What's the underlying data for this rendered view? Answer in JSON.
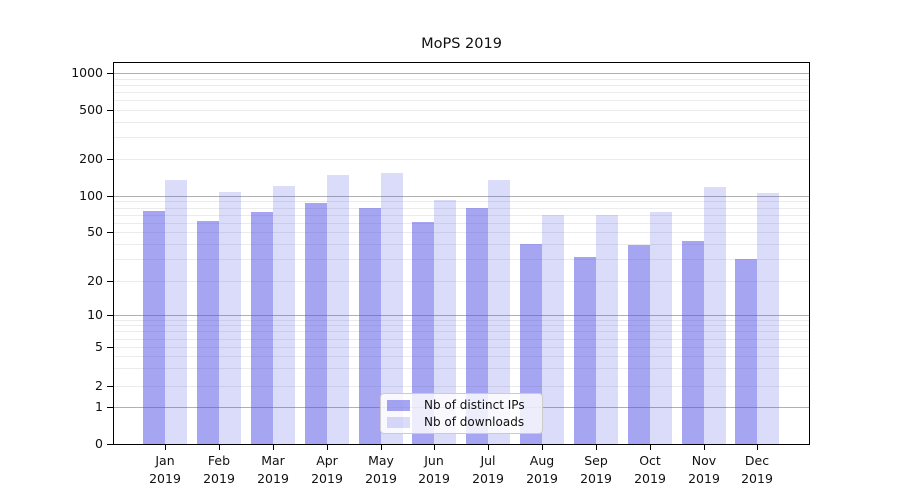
{
  "title": "MoPS 2019",
  "legend": {
    "items": [
      {
        "label": "Nb of distinct IPs",
        "color": "rgba(75,75,228,0.5)"
      },
      {
        "label": "Nb of downloads",
        "color": "rgba(75,75,228,0.2)"
      }
    ]
  },
  "y_axis": {
    "tick_values": [
      0,
      1,
      2,
      5,
      10,
      20,
      50,
      100,
      200,
      500,
      1000
    ],
    "tick_labels": [
      "0",
      "1",
      "2",
      "5",
      "10",
      "20",
      "50",
      "100",
      "200",
      "500",
      "1000"
    ]
  },
  "x_axis": {
    "tick_labels": [
      "Jan 2019",
      "Feb 2019",
      "Mar 2019",
      "Apr 2019",
      "May 2019",
      "Jun 2019",
      "Jul 2019",
      "Aug 2019",
      "Sep 2019",
      "Oct 2019",
      "Nov 2019",
      "Dec 2019"
    ]
  },
  "chart_data": {
    "type": "bar",
    "title": "MoPS 2019",
    "categories": [
      "Jan 2019",
      "Feb 2019",
      "Mar 2019",
      "Apr 2019",
      "May 2019",
      "Jun 2019",
      "Jul 2019",
      "Aug 2019",
      "Sep 2019",
      "Oct 2019",
      "Nov 2019",
      "Dec 2019"
    ],
    "series": [
      {
        "name": "Nb of distinct IPs",
        "color": "rgba(75,75,228,0.5)",
        "values": [
          75,
          62,
          74,
          88,
          80,
          61,
          80,
          40,
          31,
          39,
          42,
          30
        ]
      },
      {
        "name": "Nb of downloads",
        "color": "rgba(75,75,228,0.2)",
        "values": [
          136,
          108,
          121,
          148,
          155,
          93,
          134,
          70,
          69,
          74,
          119,
          106
        ]
      }
    ],
    "xlabel": "",
    "ylabel": "",
    "yscale": "log-like (log decades above 1, compressed linear segment 0-1, zero baseline)",
    "yticks": [
      0,
      1,
      2,
      5,
      10,
      20,
      50,
      100,
      200,
      500,
      1000
    ],
    "ylim": [
      0,
      1200
    ],
    "grid": "horizontal only; faint minor lines at 2-9 of each decade, gray major lines at 1, 10, 100, 1000",
    "legend_position": "lower center inside plot",
    "bar_layout": "grouped pairs side by side, no gap within pair"
  }
}
